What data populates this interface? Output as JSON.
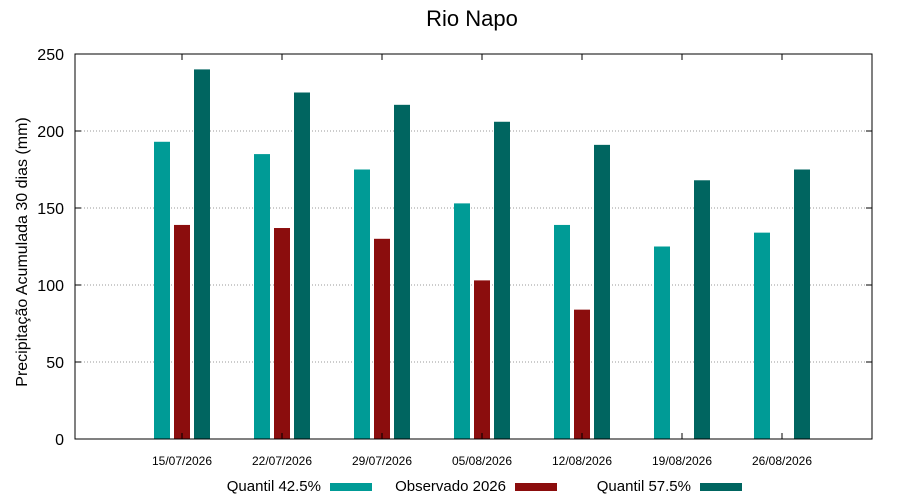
{
  "chart_data": {
    "type": "bar",
    "title": "Rio Napo",
    "ylabel": "Precipitação Acumulada 30 dias (mm)",
    "xlabel": "",
    "ylim": [
      0,
      250
    ],
    "yticks": [
      "0",
      "50",
      "100",
      "150",
      "200",
      "250"
    ],
    "grid": true,
    "legend_position": "bottom",
    "categories": [
      "15/07/2026",
      "22/07/2026",
      "29/07/2026",
      "05/08/2026",
      "12/08/2026",
      "19/08/2026",
      "26/08/2026"
    ],
    "series": [
      {
        "name": "Quantil 42.5%",
        "color": "#009b96",
        "values": [
          193,
          185,
          175,
          153,
          139,
          125,
          134
        ]
      },
      {
        "name": "Observado 2026",
        "color": "#8b0d0d",
        "values": [
          139,
          137,
          130,
          103,
          84,
          null,
          null
        ]
      },
      {
        "name": "Quantil 57.5%",
        "color": "#006560",
        "values": [
          240,
          225,
          217,
          206,
          191,
          168,
          175
        ]
      }
    ]
  }
}
